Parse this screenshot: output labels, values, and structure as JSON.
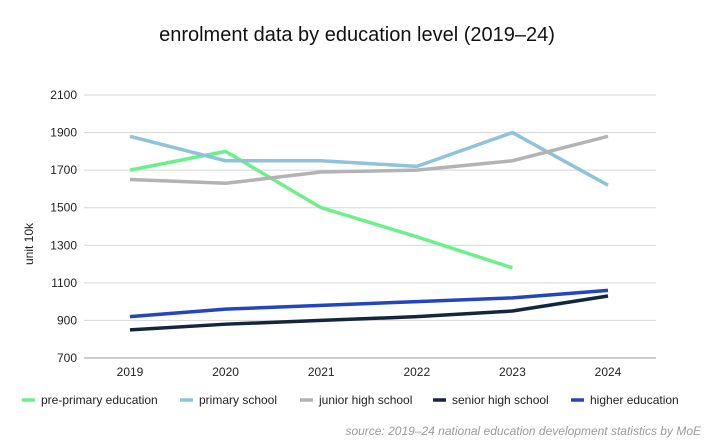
{
  "chart_data": {
    "type": "line",
    "title": "enrolment data by education level (2019–24)",
    "xlabel": "",
    "ylabel": "unit 10k",
    "ylim": [
      700,
      2100
    ],
    "yticks": [
      700,
      900,
      1100,
      1300,
      1500,
      1700,
      1900,
      2100
    ],
    "categories": [
      "2019",
      "2020",
      "2021",
      "2022",
      "2023",
      "2024"
    ],
    "grid": true,
    "legend_position": "bottom",
    "series": [
      {
        "name": "pre-primary education",
        "color": "#6cf08a",
        "values": [
          1700,
          1800,
          1500,
          1345,
          1180,
          null
        ]
      },
      {
        "name": "primary school",
        "color": "#8fc3dc",
        "values": [
          1880,
          1750,
          1750,
          1720,
          1900,
          1620
        ]
      },
      {
        "name": "junior high school",
        "color": "#b3b3b3",
        "values": [
          1650,
          1630,
          1690,
          1700,
          1750,
          1880
        ]
      },
      {
        "name": "senior high school",
        "color": "#14263e",
        "values": [
          850,
          880,
          900,
          920,
          950,
          1030
        ]
      },
      {
        "name": "higher education",
        "color": "#2346c0",
        "values": [
          920,
          960,
          980,
          1000,
          1020,
          1060
        ]
      }
    ],
    "source": "source: 2019–24 national education development statistics by MoE"
  }
}
